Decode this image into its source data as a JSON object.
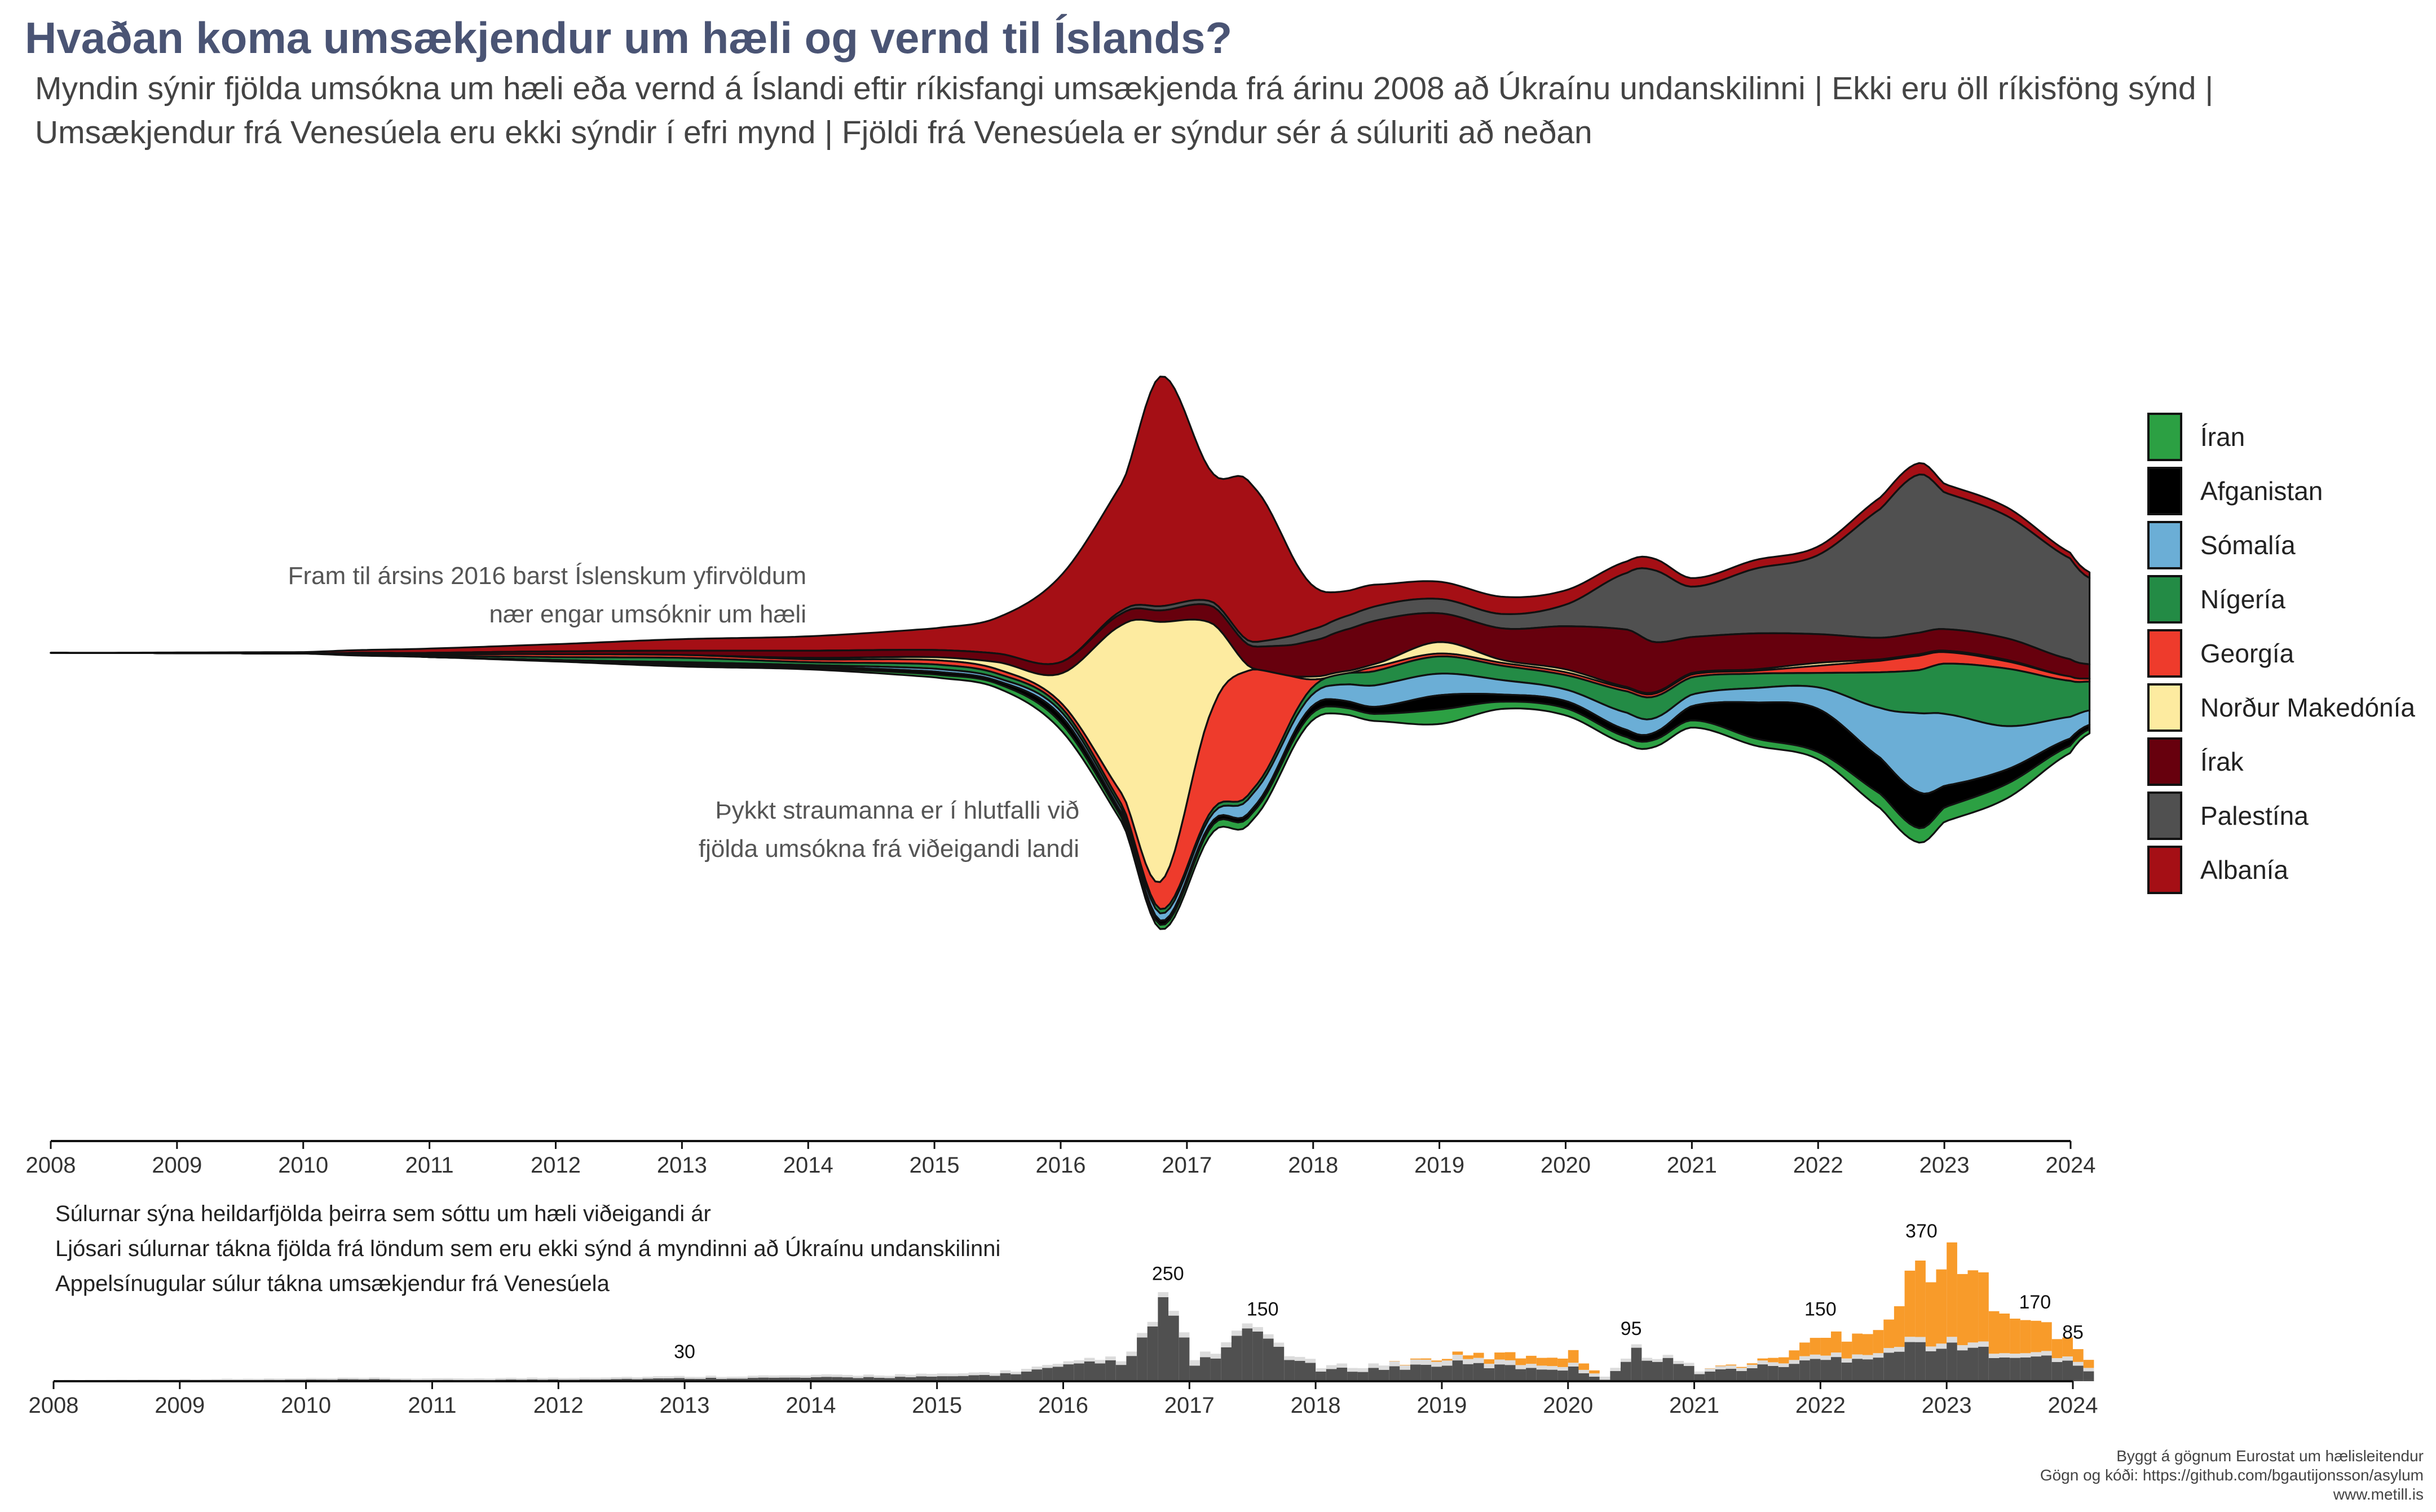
{
  "title": "Hvaðan koma umsækjendur um hæli og vernd til Íslands?",
  "subtitle_lines": [
    "Myndin sýnir fjölda umsókna um hæli eða vernd á Íslandi eftir ríkisfangi umsækjenda frá árinu 2008 að Úkraínu undanskilinni | Ekki eru öll ríkisföng sýnd |",
    "Umsækjendur frá Venesúela eru ekki sýndir í efri mynd | Fjöldi frá Venesúela er sýndur sér á súluriti að neðan"
  ],
  "annotations": {
    "early_lines": [
      "Fram til ársins 2016 barst Íslenskum yfirvöldum",
      "nær engar umsóknir um hæli"
    ],
    "thickness_lines": [
      "Þykkt straumanna er í hlutfalli við",
      "fjölda umsókna frá viðeigandi landi"
    ]
  },
  "bar_notes": [
    "Súlurnar sýna heildarfjölda þeirra sem sóttu um hæli viðeigandi ár",
    "Ljósari súlurnar tákna fjölda frá löndum sem eru ekki sýnd á myndinni að Úkraínu undanskilinni",
    "Appelsínugular súlur tákna umsækjendur frá Venesúela"
  ],
  "footer": [
    "Byggt á gögnum Eurostat um hælisleitendur",
    "Gögn og kóði:  https://github.com/bgautijonsson/asylum",
    "www.metill.is"
  ],
  "colors": {
    "Íran": "#2ca043",
    "Afganistan": "#000000",
    "Sómalía": "#6baed6",
    "Nígería": "#238b45",
    "Georgía": "#ee3b2c",
    "Norður Makedónía": "#fdeba0",
    "Írak": "#67000d",
    "Palestína": "#505050",
    "Albanía": "#a50f15",
    "other": "#dcdcdc",
    "venezuela": "#f89b2a"
  },
  "chart_data": [
    {
      "type": "area",
      "subtype": "streamgraph",
      "x_ticks": [
        "2008",
        "2009",
        "2010",
        "2011",
        "2012",
        "2013",
        "2014",
        "2015",
        "2016",
        "2017",
        "2018",
        "2019",
        "2020",
        "2021",
        "2022",
        "2023",
        "2024"
      ],
      "x": [
        2008.0,
        2010.0,
        2010.5,
        2011.0,
        2012.0,
        2013.0,
        2014.0,
        2015.0,
        2015.5,
        2016.0,
        2016.5,
        2016.8,
        2017.2,
        2017.5,
        2018.0,
        2018.5,
        2019.0,
        2019.5,
        2020.0,
        2020.5,
        2020.7,
        2021.0,
        2021.5,
        2022.0,
        2022.5,
        2022.8,
        2023.0,
        2023.5,
        2024.0,
        2024.15
      ],
      "series": [
        {
          "name": "Albanía",
          "values": [
            0,
            1,
            2,
            3,
            5,
            8,
            10,
            15,
            25,
            60,
            90,
            160,
            90,
            110,
            30,
            15,
            12,
            12,
            10,
            8,
            8,
            6,
            6,
            6,
            8,
            8,
            6,
            6,
            4,
            4
          ]
        },
        {
          "name": "Palestína",
          "values": [
            0,
            0,
            0,
            0,
            0,
            0,
            0,
            0,
            0,
            0,
            2,
            3,
            3,
            3,
            8,
            10,
            10,
            10,
            15,
            40,
            50,
            35,
            45,
            55,
            90,
            110,
            95,
            85,
            70,
            60
          ]
        },
        {
          "name": "Írak",
          "values": [
            0,
            0,
            0,
            1,
            2,
            3,
            5,
            5,
            6,
            8,
            8,
            8,
            12,
            15,
            25,
            30,
            20,
            22,
            30,
            40,
            35,
            25,
            25,
            20,
            15,
            15,
            15,
            15,
            12,
            10
          ]
        },
        {
          "name": "Norður Makedónía",
          "values": [
            0,
            0,
            1,
            0,
            0,
            0,
            1,
            2,
            5,
            20,
            120,
            180,
            60,
            2,
            2,
            2,
            8,
            2,
            2,
            1,
            1,
            1,
            1,
            2,
            1,
            1,
            1,
            1,
            0,
            0
          ]
        },
        {
          "name": "Georgía",
          "values": [
            0,
            0,
            0,
            1,
            2,
            2,
            2,
            3,
            3,
            3,
            8,
            20,
            70,
            85,
            5,
            3,
            2,
            2,
            2,
            2,
            2,
            2,
            2,
            5,
            8,
            10,
            8,
            5,
            3,
            2
          ]
        },
        {
          "name": "Nígería",
          "values": [
            0,
            0,
            0,
            1,
            2,
            3,
            2,
            3,
            3,
            3,
            3,
            3,
            3,
            3,
            5,
            10,
            12,
            10,
            10,
            15,
            15,
            12,
            10,
            10,
            25,
            30,
            35,
            40,
            25,
            20
          ]
        },
        {
          "name": "Sómalía",
          "values": [
            0,
            0,
            0,
            0,
            0,
            1,
            1,
            2,
            2,
            3,
            3,
            5,
            5,
            10,
            8,
            15,
            15,
            10,
            8,
            12,
            10,
            8,
            10,
            15,
            35,
            55,
            50,
            30,
            15,
            10
          ]
        },
        {
          "name": "Afganistan",
          "values": [
            0,
            0,
            0,
            0,
            0,
            1,
            1,
            2,
            2,
            5,
            3,
            3,
            3,
            3,
            5,
            5,
            10,
            5,
            5,
            5,
            5,
            10,
            25,
            30,
            25,
            25,
            15,
            10,
            5,
            3
          ]
        },
        {
          "name": "Íran",
          "values": [
            0,
            0,
            1,
            0,
            1,
            1,
            1,
            2,
            3,
            5,
            3,
            3,
            5,
            5,
            5,
            5,
            10,
            5,
            5,
            5,
            5,
            5,
            5,
            5,
            10,
            10,
            10,
            10,
            5,
            3
          ]
        }
      ]
    },
    {
      "type": "bar",
      "subtype": "stacked",
      "x_ticks": [
        "2008",
        "2009",
        "2010",
        "2011",
        "2012",
        "2013",
        "2014",
        "2015",
        "2016",
        "2017",
        "2018",
        "2019",
        "2020",
        "2021",
        "2022",
        "2023",
        "2024"
      ],
      "series": [
        {
          "name": "shown",
          "anchors_x": [
            2008.0,
            2010.5,
            2011.0,
            2012.0,
            2013.0,
            2014.0,
            2015.0,
            2015.5,
            2016.0,
            2016.5,
            2016.8,
            2017.0,
            2017.5,
            2017.8,
            2018.0,
            2018.5,
            2019.0,
            2019.5,
            2020.0,
            2020.25,
            2020.5,
            2020.75,
            2021.0,
            2021.5,
            2022.0,
            2022.5,
            2022.8,
            2023.0,
            2023.5,
            2024.0,
            2024.15
          ],
          "anchors_y": [
            0,
            5,
            3,
            5,
            8,
            10,
            12,
            20,
            40,
            60,
            230,
            40,
            140,
            60,
            30,
            35,
            50,
            40,
            35,
            5,
            80,
            60,
            25,
            40,
            60,
            80,
            110,
            90,
            80,
            45,
            25
          ]
        },
        {
          "name": "other",
          "anchors_x": [
            2008.0,
            2012.0,
            2016.0,
            2017.0,
            2018.0,
            2019.0,
            2020.0,
            2021.0,
            2022.0,
            2023.0,
            2024.15
          ],
          "anchors_y": [
            3,
            5,
            8,
            15,
            10,
            15,
            10,
            8,
            12,
            15,
            10
          ]
        },
        {
          "name": "venezuela",
          "anchors_x": [
            2008.0,
            2018.5,
            2019.0,
            2019.5,
            2020.0,
            2020.25,
            2020.5,
            2021.0,
            2021.5,
            2022.0,
            2022.5,
            2022.8,
            2023.0,
            2023.5,
            2023.8,
            2024.15
          ],
          "anchors_y": [
            0,
            0,
            5,
            20,
            30,
            0,
            0,
            0,
            5,
            50,
            80,
            230,
            220,
            120,
            60,
            20
          ]
        }
      ],
      "data_labels": [
        {
          "x": 2013.0,
          "label": "30",
          "value": 30
        },
        {
          "x": 2016.83,
          "label": "250",
          "value": 250
        },
        {
          "x": 2017.58,
          "label": "150",
          "value": 150
        },
        {
          "x": 2020.5,
          "label": "95",
          "value": 95
        },
        {
          "x": 2022.0,
          "label": "150",
          "value": 150
        },
        {
          "x": 2022.8,
          "label": "370",
          "value": 370
        },
        {
          "x": 2023.7,
          "label": "170",
          "value": 170
        },
        {
          "x": 2024.0,
          "label": "85",
          "value": 85
        }
      ]
    }
  ]
}
